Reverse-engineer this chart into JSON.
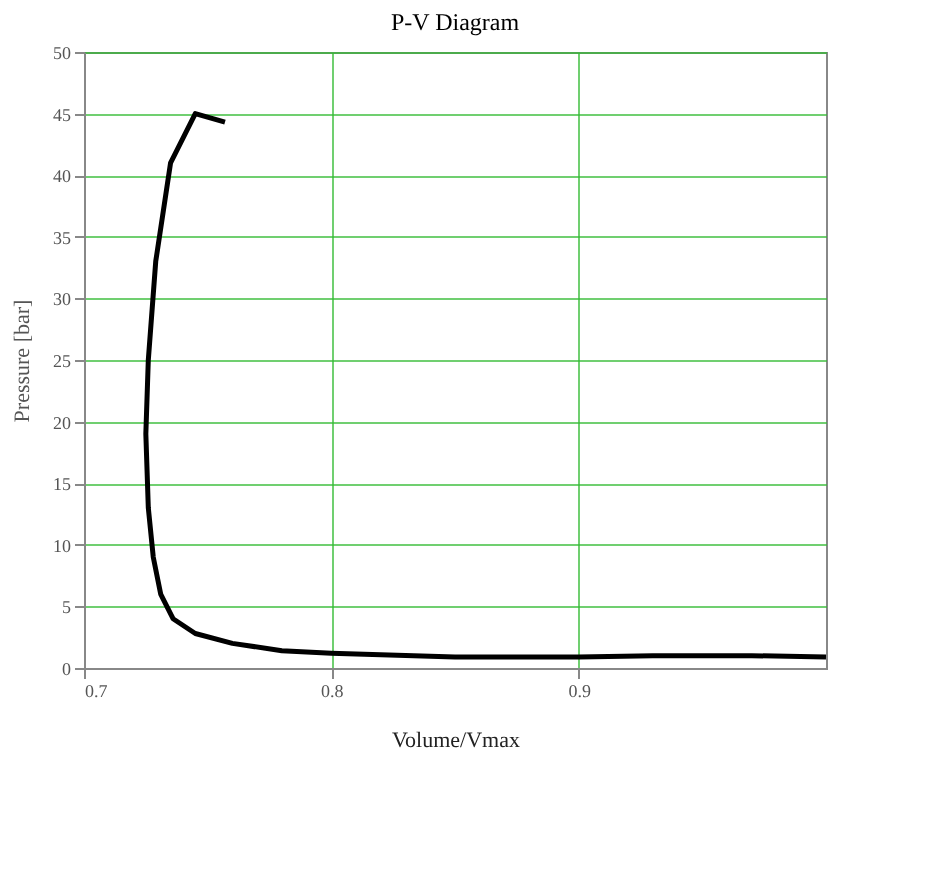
{
  "chart_data": {
    "type": "line",
    "title": "P-V Diagram",
    "xlabel": "Volume/Vmax",
    "ylabel": "Pressure [bar]",
    "series": [
      {
        "color": "#000000",
        "x": [
          1.0,
          0.97,
          0.93,
          0.9,
          0.85,
          0.8,
          0.78,
          0.76,
          0.745,
          0.736,
          0.731,
          0.728,
          0.726,
          0.725,
          0.726,
          0.729,
          0.735,
          0.745,
          0.757
        ],
        "values": [
          0.9,
          1.0,
          1.0,
          0.9,
          0.9,
          1.2,
          1.4,
          2.0,
          2.8,
          4.0,
          6.0,
          9.0,
          13.0,
          19.0,
          25.0,
          33.0,
          41.0,
          45.0,
          44.3
        ]
      }
    ],
    "xlim": [
      0.7,
      1.0
    ],
    "xticks": [
      0.7,
      0.8,
      0.9
    ],
    "ylim": [
      0,
      50
    ],
    "yticks": [
      0,
      5,
      10,
      15,
      20,
      25,
      30,
      35,
      40,
      45,
      50
    ],
    "grid": true,
    "legend": false,
    "marker": "none",
    "line_style": "solid"
  }
}
